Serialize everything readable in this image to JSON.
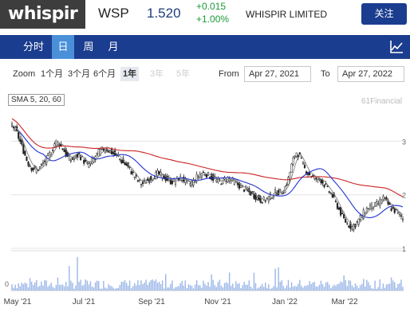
{
  "header": {
    "logo": "whispir",
    "ticker": "WSP",
    "price": "1.520",
    "change_abs": "+0.015",
    "change_pct": "+1.00%",
    "company": "WHISPIR LIMITED",
    "follow_label": "关注"
  },
  "nav": {
    "tabs": [
      {
        "label": "分时",
        "active": false
      },
      {
        "label": "日",
        "active": true
      },
      {
        "label": "周",
        "active": false
      },
      {
        "label": "月",
        "active": false
      }
    ],
    "chart_type_icon": "line-chart-icon"
  },
  "zoom": {
    "label": "Zoom",
    "options": [
      {
        "label": "1个月",
        "state": "normal"
      },
      {
        "label": "3个月",
        "state": "normal"
      },
      {
        "label": "6个月",
        "state": "normal"
      },
      {
        "label": "1年",
        "state": "selected"
      },
      {
        "label": "3年",
        "state": "disabled"
      },
      {
        "label": "5年",
        "state": "disabled"
      }
    ],
    "from_label": "From",
    "from_value": "Apr 27, 2021",
    "to_label": "To",
    "to_value": "Apr 27, 2022"
  },
  "chart": {
    "sma_label": "SMA 5, 20, 60",
    "credit": "61Financial",
    "colors": {
      "up": "#ffffff",
      "down": "#222222",
      "sma5": "#8a8a8a",
      "sma20": "#2233cc",
      "sma60": "#cc2222",
      "volume": "#9db8e8"
    }
  },
  "chart_data": {
    "type": "candlestick",
    "x_ticks": [
      "May '21",
      "Jul '21",
      "Sep '21",
      "Nov '21",
      "Jan '22",
      "Mar '22"
    ],
    "y_ticks": [
      1,
      2,
      3
    ],
    "y_range": [
      1,
      3.6
    ],
    "volume_y_ticks": [
      0
    ],
    "close_series": [
      3.3,
      3.2,
      3.0,
      2.8,
      2.6,
      2.5,
      2.45,
      2.5,
      2.6,
      2.7,
      2.8,
      3.0,
      2.95,
      2.85,
      2.7,
      2.65,
      2.7,
      2.75,
      2.65,
      2.55,
      2.6,
      2.7,
      2.8,
      2.85,
      2.85,
      2.8,
      2.75,
      2.7,
      2.6,
      2.55,
      2.45,
      2.35,
      2.25,
      2.2,
      2.25,
      2.3,
      2.35,
      2.4,
      2.35,
      2.3,
      2.25,
      2.25,
      2.3,
      2.3,
      2.25,
      2.2,
      2.25,
      2.35,
      2.4,
      2.4,
      2.35,
      2.3,
      2.25,
      2.25,
      2.3,
      2.3,
      2.25,
      2.2,
      2.15,
      2.1,
      2.05,
      2.0,
      1.95,
      1.9,
      1.9,
      1.95,
      2.0,
      2.05,
      2.05,
      2.1,
      2.3,
      2.6,
      2.8,
      2.7,
      2.5,
      2.4,
      2.35,
      2.3,
      2.3,
      2.2,
      2.1,
      2.0,
      1.85,
      1.7,
      1.55,
      1.45,
      1.4,
      1.45,
      1.55,
      1.65,
      1.75,
      1.8,
      1.8,
      1.85,
      1.95,
      1.85,
      1.75,
      1.7,
      1.65,
      1.55
    ]
  }
}
